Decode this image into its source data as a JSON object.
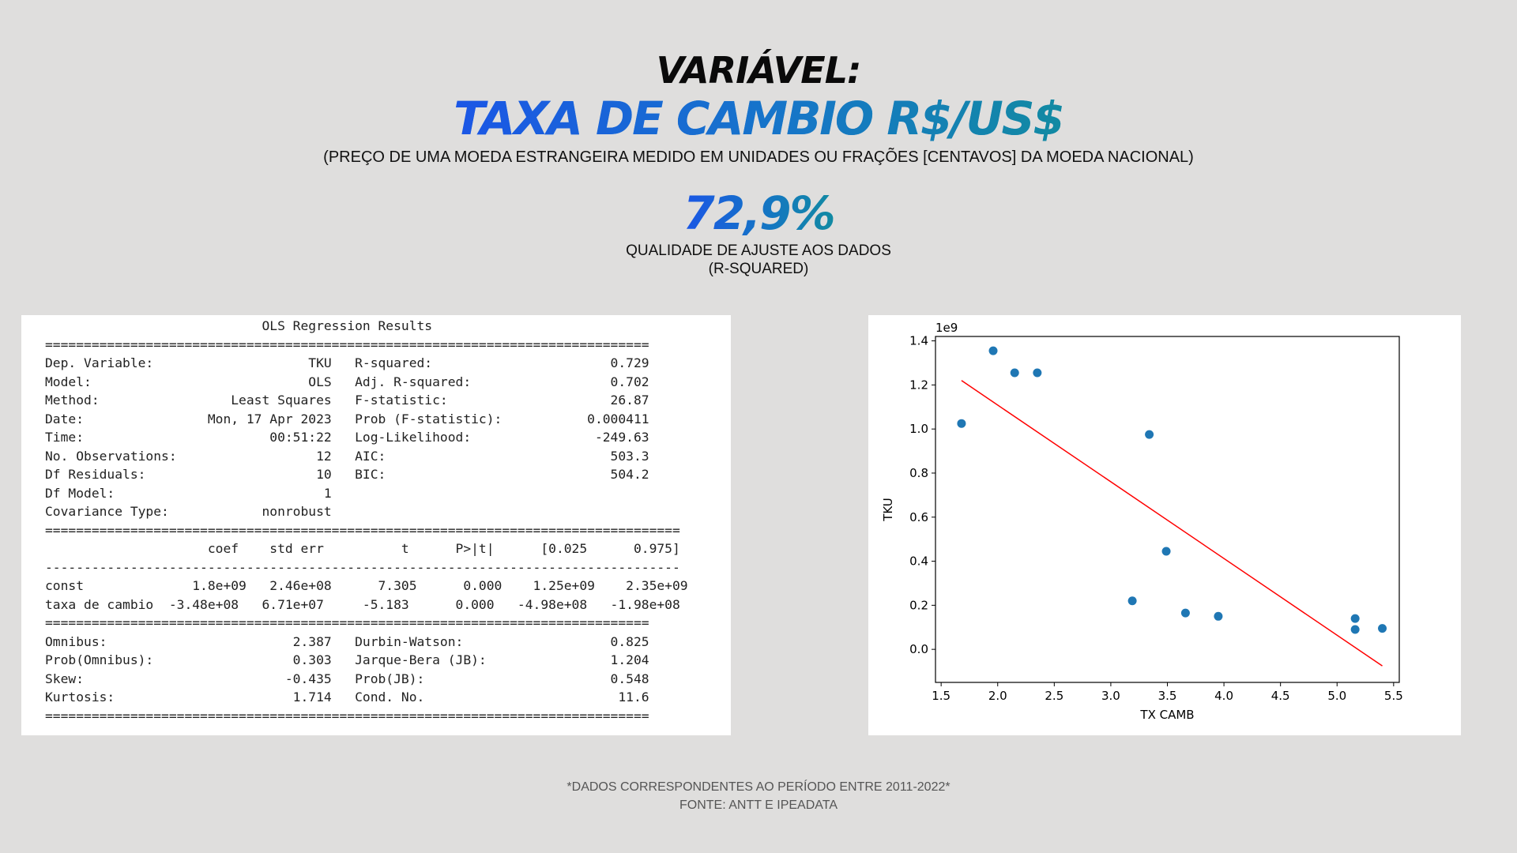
{
  "header": {
    "variable_label": "VARIÁVEL:",
    "variable_name": "TAXA DE CAMBIO R$/US$",
    "description": "(PREÇO DE UMA MOEDA ESTRANGEIRA MEDIDO EM UNIDADES OU FRAÇÕES [CENTAVOS] DA MOEDA NACIONAL)"
  },
  "metric": {
    "value": "72,9%",
    "label_line1": "QUALIDADE DE AJUSTE AOS DADOS",
    "label_line2": "(R-SQUARED)"
  },
  "ols_summary": {
    "text": "                            OLS Regression Results                            \n==============================================================================\nDep. Variable:                    TKU   R-squared:                       0.729\nModel:                            OLS   Adj. R-squared:                  0.702\nMethod:                 Least Squares   F-statistic:                     26.87\nDate:                Mon, 17 Apr 2023   Prob (F-statistic):           0.000411\nTime:                        00:51:22   Log-Likelihood:                -249.63\nNo. Observations:                  12   AIC:                             503.3\nDf Residuals:                      10   BIC:                             504.2\nDf Model:                           1                                         \nCovariance Type:            nonrobust                                         \n==================================================================================\n                     coef    std err          t      P>|t|      [0.025      0.975]\n----------------------------------------------------------------------------------\nconst              1.8e+09   2.46e+08      7.305      0.000    1.25e+09    2.35e+09\ntaxa de cambio  -3.48e+08   6.71e+07     -5.183      0.000   -4.98e+08   -1.98e+08\n==============================================================================\nOmnibus:                        2.387   Durbin-Watson:                   0.825\nProb(Omnibus):                  0.303   Jarque-Bera (JB):                1.204\nSkew:                          -0.435   Prob(JB):                        0.548\nKurtosis:                       1.714   Cond. No.                         11.6\n=============================================================================="
  },
  "chart_data": {
    "type": "scatter",
    "xlabel": "TX CAMB",
    "ylabel": "TKU",
    "y_offset_text": "1e9",
    "xlim": [
      1.45,
      5.55
    ],
    "ylim": [
      -0.15,
      1.42
    ],
    "xticks": [
      "1.5",
      "2.0",
      "2.5",
      "3.0",
      "3.5",
      "4.0",
      "4.5",
      "5.0",
      "5.5"
    ],
    "yticks": [
      "0.0",
      "0.2",
      "0.4",
      "0.6",
      "0.8",
      "1.0",
      "1.2",
      "1.4"
    ],
    "grid": false,
    "series": [
      {
        "type": "scatter",
        "color": "#1f77b4",
        "x": [
          1.68,
          1.96,
          2.15,
          2.35,
          3.19,
          3.34,
          3.49,
          3.66,
          3.95,
          5.16,
          5.16,
          5.4
        ],
        "y": [
          1.025,
          1.355,
          1.255,
          1.255,
          0.22,
          0.975,
          0.445,
          0.165,
          0.15,
          0.14,
          0.09,
          0.095
        ]
      },
      {
        "type": "line",
        "color": "#ff0000",
        "x": [
          1.68,
          5.4
        ],
        "y": [
          1.22,
          -0.075
        ]
      }
    ]
  },
  "footer": {
    "line1": "*DADOS CORRESPONDENTES AO PERÍODO ENTRE 2011-2022*",
    "line2": "FONTE: ANTT E IPEADATA"
  }
}
